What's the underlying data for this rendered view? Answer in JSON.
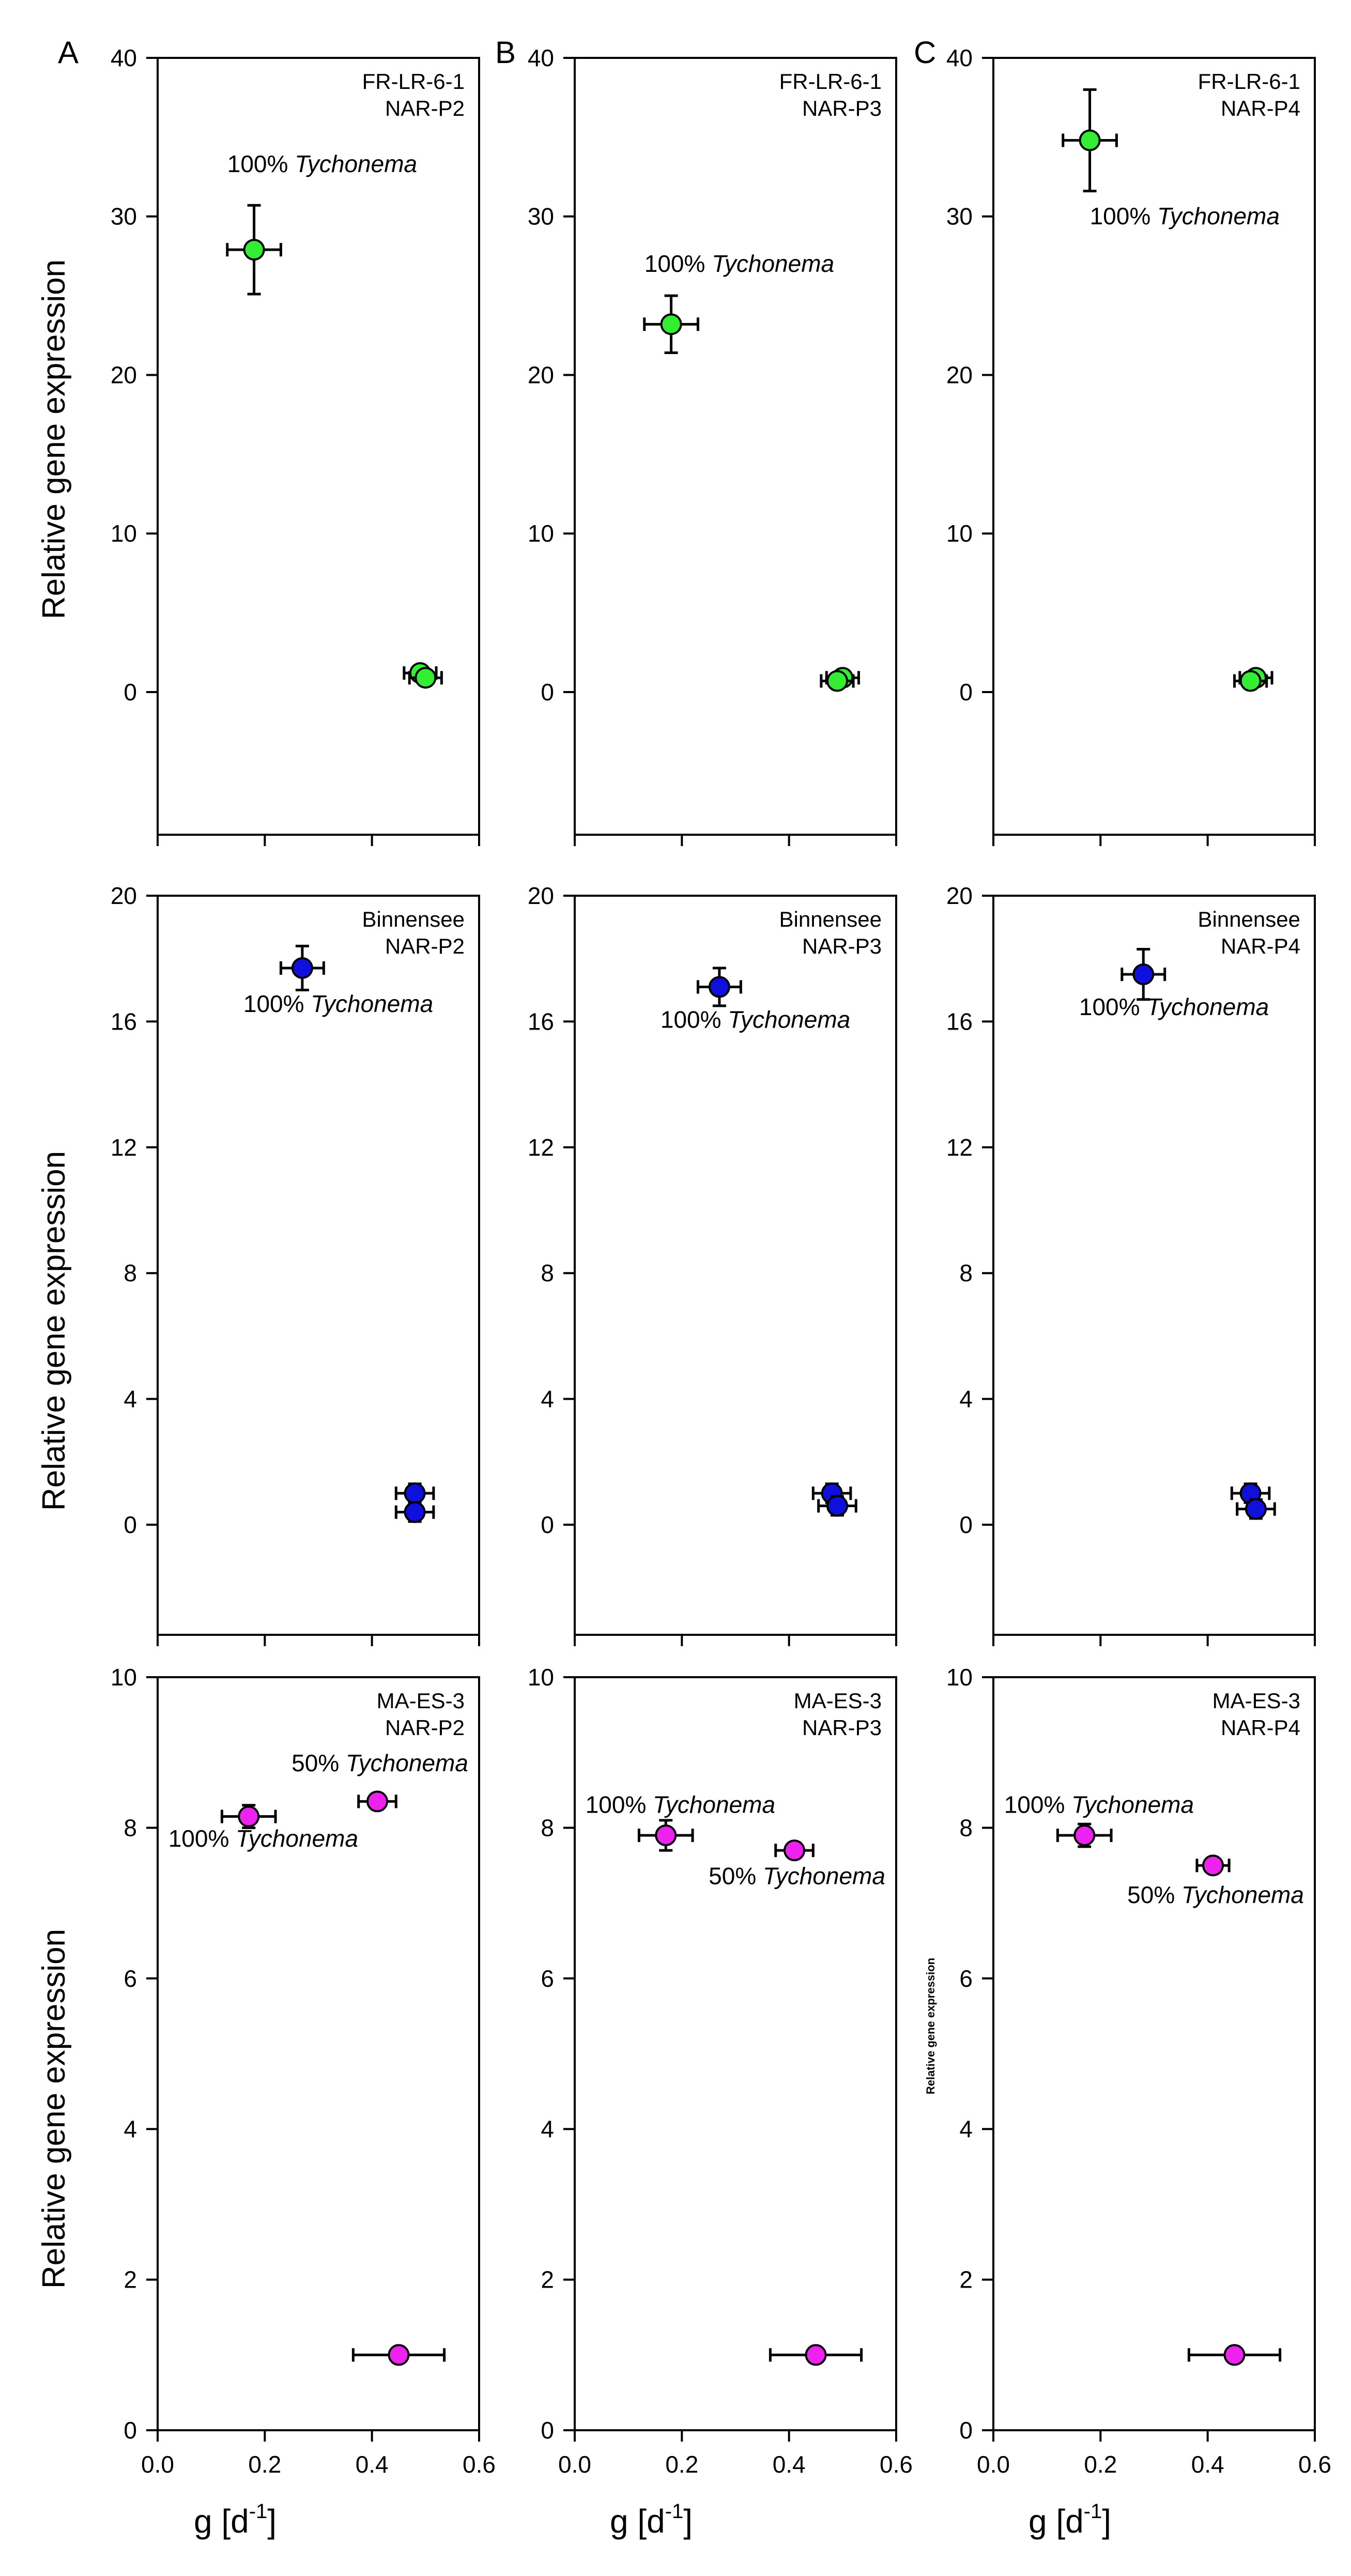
{
  "figure": {
    "panel_letters": [
      "A",
      "B",
      "C"
    ],
    "row_ylabels": [
      "Relative gene expression",
      "Relative gene expression",
      "Relative gene expression"
    ],
    "small_ylabel": "Relative gene expression",
    "xlabels": [
      "g [d",
      "g [d",
      "g [d"
    ],
    "xlabel_exponent": "-1",
    "xlabel_close": "]"
  },
  "colors": {
    "green": "#33ee33",
    "blue": "#1010dd",
    "magenta": "#ee22ee"
  },
  "chart_data": [
    {
      "type": "scatter",
      "row": 0,
      "col": 0,
      "color": "green",
      "labels": [
        "FR-LR-6-1",
        "NAR-P2"
      ],
      "ylim": [
        -9,
        40
      ],
      "yticks": [
        0,
        10,
        20,
        30,
        40
      ],
      "xlim": [
        0,
        0.6
      ],
      "xticks": [],
      "xticklabels": [],
      "points": [
        {
          "x": 0.18,
          "y": 27.9,
          "xerr": 0.05,
          "yerr": 2.8
        },
        {
          "x": 0.49,
          "y": 1.2,
          "xerr": 0.03,
          "yerr": 0.3
        },
        {
          "x": 0.5,
          "y": 0.9,
          "xerr": 0.03,
          "yerr": 0.2
        }
      ],
      "annotations": [
        {
          "prefix": "100% ",
          "species": "Tychonema",
          "x": 0.13,
          "y": 32.8
        }
      ]
    },
    {
      "type": "scatter",
      "row": 0,
      "col": 1,
      "color": "green",
      "labels": [
        "FR-LR-6-1",
        "NAR-P3"
      ],
      "ylim": [
        -9,
        40
      ],
      "yticks": [
        0,
        10,
        20,
        30,
        40
      ],
      "xlim": [
        0,
        0.6
      ],
      "xticks": [],
      "xticklabels": [],
      "points": [
        {
          "x": 0.18,
          "y": 23.2,
          "xerr": 0.05,
          "yerr": 1.8
        },
        {
          "x": 0.5,
          "y": 0.9,
          "xerr": 0.03,
          "yerr": 0.3
        },
        {
          "x": 0.49,
          "y": 0.7,
          "xerr": 0.03,
          "yerr": 0.2
        }
      ],
      "annotations": [
        {
          "prefix": "100% ",
          "species": "Tychonema",
          "x": 0.13,
          "y": 26.5
        }
      ]
    },
    {
      "type": "scatter",
      "row": 0,
      "col": 2,
      "color": "green",
      "labels": [
        "FR-LR-6-1",
        "NAR-P4"
      ],
      "ylim": [
        -9,
        40
      ],
      "yticks": [
        0,
        10,
        20,
        30,
        40
      ],
      "xlim": [
        0,
        0.6
      ],
      "xticks": [],
      "xticklabels": [],
      "points": [
        {
          "x": 0.18,
          "y": 34.8,
          "xerr": 0.05,
          "yerr": 3.2
        },
        {
          "x": 0.49,
          "y": 0.9,
          "xerr": 0.03,
          "yerr": 0.3
        },
        {
          "x": 0.48,
          "y": 0.7,
          "xerr": 0.03,
          "yerr": 0.2
        }
      ],
      "annotations": [
        {
          "prefix": "100% ",
          "species": "Tychonema",
          "x": 0.18,
          "y": 29.5
        }
      ]
    },
    {
      "type": "scatter",
      "row": 1,
      "col": 0,
      "color": "blue",
      "labels": [
        "Binnensee",
        "NAR-P2"
      ],
      "ylim": [
        -3.5,
        20
      ],
      "yticks": [
        0,
        4,
        8,
        12,
        16,
        20
      ],
      "xlim": [
        0,
        0.6
      ],
      "xticks": [],
      "xticklabels": [],
      "points": [
        {
          "x": 0.27,
          "y": 17.7,
          "xerr": 0.04,
          "yerr": 0.7
        },
        {
          "x": 0.48,
          "y": 1.0,
          "xerr": 0.035,
          "yerr": 0.3
        },
        {
          "x": 0.48,
          "y": 0.4,
          "xerr": 0.035,
          "yerr": 0.3
        }
      ],
      "annotations": [
        {
          "prefix": "100% ",
          "species": "Tychonema",
          "x": 0.16,
          "y": 16.3
        }
      ]
    },
    {
      "type": "scatter",
      "row": 1,
      "col": 1,
      "color": "blue",
      "labels": [
        "Binnensee",
        "NAR-P3"
      ],
      "ylim": [
        -3.5,
        20
      ],
      "yticks": [
        0,
        4,
        8,
        12,
        16,
        20
      ],
      "xlim": [
        0,
        0.6
      ],
      "xticks": [],
      "xticklabels": [],
      "points": [
        {
          "x": 0.27,
          "y": 17.1,
          "xerr": 0.04,
          "yerr": 0.6
        },
        {
          "x": 0.48,
          "y": 1.0,
          "xerr": 0.035,
          "yerr": 0.3
        },
        {
          "x": 0.49,
          "y": 0.6,
          "xerr": 0.035,
          "yerr": 0.3
        }
      ],
      "annotations": [
        {
          "prefix": "100% ",
          "species": "Tychonema",
          "x": 0.16,
          "y": 15.8
        }
      ]
    },
    {
      "type": "scatter",
      "row": 1,
      "col": 2,
      "color": "blue",
      "labels": [
        "Binnensee",
        "NAR-P4"
      ],
      "ylim": [
        -3.5,
        20
      ],
      "yticks": [
        0,
        4,
        8,
        12,
        16,
        20
      ],
      "xlim": [
        0,
        0.6
      ],
      "xticks": [],
      "xticklabels": [],
      "points": [
        {
          "x": 0.28,
          "y": 17.5,
          "xerr": 0.04,
          "yerr": 0.8
        },
        {
          "x": 0.48,
          "y": 1.0,
          "xerr": 0.035,
          "yerr": 0.3
        },
        {
          "x": 0.49,
          "y": 0.5,
          "xerr": 0.035,
          "yerr": 0.3
        }
      ],
      "annotations": [
        {
          "prefix": "100% ",
          "species": "Tychonema",
          "x": 0.16,
          "y": 16.2
        }
      ]
    },
    {
      "type": "scatter",
      "row": 2,
      "col": 0,
      "color": "magenta",
      "labels": [
        "MA-ES-3",
        "NAR-P2"
      ],
      "ylim": [
        0,
        10
      ],
      "yticks": [
        0,
        2,
        4,
        6,
        8,
        10
      ],
      "xlim": [
        0,
        0.6
      ],
      "xticks": [
        0,
        0.2,
        0.4,
        0.6
      ],
      "xticklabels": [
        "0.0",
        "0.2",
        "0.4",
        "0.6"
      ],
      "points": [
        {
          "x": 0.17,
          "y": 8.15,
          "xerr": 0.05,
          "yerr": 0.15
        },
        {
          "x": 0.41,
          "y": 8.35,
          "xerr": 0.035,
          "yerr": 0.1
        },
        {
          "x": 0.45,
          "y": 1.0,
          "xerr": 0.085,
          "yerr": 0.0
        }
      ],
      "annotations": [
        {
          "prefix": "50% ",
          "species": "Tychonema",
          "x": 0.25,
          "y": 8.75
        },
        {
          "prefix": "100% ",
          "species": "Tychonema",
          "x": 0.02,
          "y": 7.75
        }
      ]
    },
    {
      "type": "scatter",
      "row": 2,
      "col": 1,
      "color": "magenta",
      "labels": [
        "MA-ES-3",
        "NAR-P3"
      ],
      "ylim": [
        0,
        10
      ],
      "yticks": [
        0,
        2,
        4,
        6,
        8,
        10
      ],
      "xlim": [
        0,
        0.6
      ],
      "xticks": [
        0,
        0.2,
        0.4,
        0.6
      ],
      "xticklabels": [
        "0.0",
        "0.2",
        "0.4",
        "0.6"
      ],
      "points": [
        {
          "x": 0.17,
          "y": 7.9,
          "xerr": 0.05,
          "yerr": 0.2
        },
        {
          "x": 0.41,
          "y": 7.7,
          "xerr": 0.035,
          "yerr": 0.1
        },
        {
          "x": 0.45,
          "y": 1.0,
          "xerr": 0.085,
          "yerr": 0.0
        }
      ],
      "annotations": [
        {
          "prefix": "100% ",
          "species": "Tychonema",
          "x": 0.02,
          "y": 8.2
        },
        {
          "prefix": "50% ",
          "species": "Tychonema",
          "x": 0.25,
          "y": 7.25
        }
      ]
    },
    {
      "type": "scatter",
      "row": 2,
      "col": 2,
      "color": "magenta",
      "labels": [
        "MA-ES-3",
        "NAR-P4"
      ],
      "ylim": [
        0,
        10
      ],
      "yticks": [
        0,
        2,
        4,
        6,
        8,
        10
      ],
      "xlim": [
        0,
        0.6
      ],
      "xticks": [
        0,
        0.2,
        0.4,
        0.6
      ],
      "xticklabels": [
        "0.0",
        "0.2",
        "0.4",
        "0.6"
      ],
      "points": [
        {
          "x": 0.17,
          "y": 7.9,
          "xerr": 0.05,
          "yerr": 0.15
        },
        {
          "x": 0.41,
          "y": 7.5,
          "xerr": 0.03,
          "yerr": 0.08
        },
        {
          "x": 0.45,
          "y": 1.0,
          "xerr": 0.085,
          "yerr": 0.0
        }
      ],
      "annotations": [
        {
          "prefix": "100% ",
          "species": "Tychonema",
          "x": 0.02,
          "y": 8.2
        },
        {
          "prefix": "50% ",
          "species": "Tychonema",
          "x": 0.25,
          "y": 7.0
        }
      ]
    }
  ]
}
